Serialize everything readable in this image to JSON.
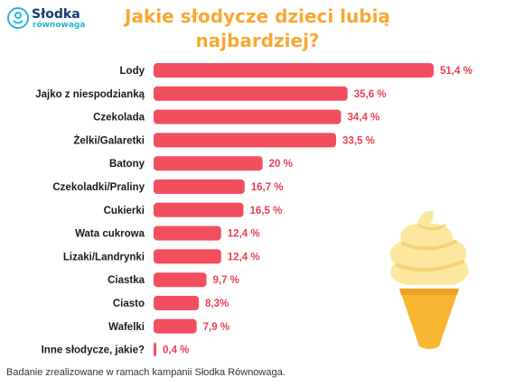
{
  "brand": {
    "name": "Słodka",
    "sub": "równowaga"
  },
  "title_lines": [
    "Jakie słodycze dzieci lubią",
    "najbardziej?"
  ],
  "footnote": "Badanie zrealizowane w ramach kampanii Słodka Równowaga.",
  "colors": {
    "bar": "#f24f5e",
    "label_value": "#e8414f",
    "title": "#f7a833"
  },
  "illustration": "ice-cream-cone",
  "chart_data": {
    "type": "bar",
    "orientation": "horizontal",
    "categories": [
      "Lody",
      "Jajko z niespodzianką",
      "Czekolada",
      "Żelki/Galaretki",
      "Batony",
      "Czekoladki/Praliny",
      "Cukierki",
      "Wata cukrowa",
      "Lizaki/Landrynki",
      "Ciastka",
      "Ciasto",
      "Wafelki",
      "Inne słodycze, jakie?"
    ],
    "values": [
      51.4,
      35.6,
      34.4,
      33.5,
      20,
      16.7,
      16.5,
      12.4,
      12.4,
      9.7,
      8.3,
      7.9,
      0.4
    ],
    "value_labels": [
      "51,4 %",
      "35,6 %",
      "34,4 %",
      "33,5 %",
      "20 %",
      "16,7 %",
      "16,5 %",
      "12,4 %",
      "12,4 %",
      "9,7 %",
      "8,3%",
      "7,9 %",
      "0,4 %"
    ],
    "unit": "%",
    "xlim": [
      0,
      51.4
    ],
    "grid": false,
    "legend": "none"
  }
}
